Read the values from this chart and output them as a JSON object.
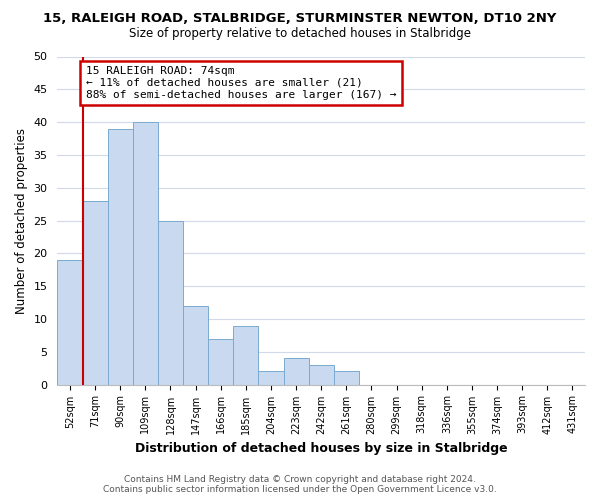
{
  "title": "15, RALEIGH ROAD, STALBRIDGE, STURMINSTER NEWTON, DT10 2NY",
  "subtitle": "Size of property relative to detached houses in Stalbridge",
  "xlabel": "Distribution of detached houses by size in Stalbridge",
  "ylabel": "Number of detached properties",
  "bin_labels": [
    "52sqm",
    "71sqm",
    "90sqm",
    "109sqm",
    "128sqm",
    "147sqm",
    "166sqm",
    "185sqm",
    "204sqm",
    "223sqm",
    "242sqm",
    "261sqm",
    "280sqm",
    "299sqm",
    "318sqm",
    "336sqm",
    "355sqm",
    "374sqm",
    "393sqm",
    "412sqm",
    "431sqm"
  ],
  "bar_heights": [
    19,
    28,
    39,
    40,
    25,
    12,
    7,
    9,
    2,
    4,
    3,
    2,
    0,
    0,
    0,
    0,
    0,
    0,
    0,
    0,
    0
  ],
  "bar_color": "#c8d9f0",
  "bar_edgecolor": "#7aaad0",
  "ylim": [
    0,
    50
  ],
  "yticks": [
    0,
    5,
    10,
    15,
    20,
    25,
    30,
    35,
    40,
    45,
    50
  ],
  "annotation_title": "15 RALEIGH ROAD: 74sqm",
  "annotation_line1": "← 11% of detached houses are smaller (21)",
  "annotation_line2": "88% of semi-detached houses are larger (167) →",
  "annotation_box_color": "#ffffff",
  "annotation_box_edgecolor": "#cc0000",
  "vline_color": "#cc0000",
  "footer_line1": "Contains HM Land Registry data © Crown copyright and database right 2024.",
  "footer_line2": "Contains public sector information licensed under the Open Government Licence v3.0.",
  "background_color": "#ffffff",
  "grid_color": "#d0daea"
}
